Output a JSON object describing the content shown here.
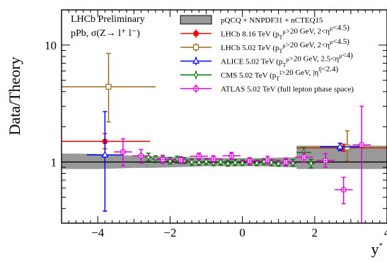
{
  "chart_data": {
    "type": "scatter",
    "title": "",
    "annotations": [
      "LHCb Preliminary",
      "pPb, σ(Z→ l⁺ l⁻)"
    ],
    "xlabel": "y*",
    "ylabel": "Data/Theory",
    "xlim": [
      -5,
      4
    ],
    "ylim": [
      0.3,
      20
    ],
    "ylog": true,
    "grid": false,
    "legend_position": "top-right",
    "x_ticks": [
      -4,
      -2,
      0,
      2,
      4
    ],
    "x_tick_labels": [
      "−4",
      "−2",
      "0",
      "2",
      "4"
    ],
    "y_ticks": [
      1,
      10
    ],
    "y_tick_labels": [
      "1",
      "10"
    ],
    "reference_line": 1,
    "theory_band": {
      "name": "pQCQ + NNPDF31 + nCTEQ15",
      "color": "#999999",
      "x": [
        -5,
        -4.5,
        -4.0,
        -3.5,
        -3.0,
        -2.5,
        -2.0,
        -1.5,
        -1.0,
        -0.5,
        0.0,
        0.5,
        1.0,
        1.5,
        1.5001,
        2.0,
        2.5,
        3.0,
        3.5,
        4.0
      ],
      "low": [
        0.87,
        0.87,
        0.87,
        0.88,
        0.89,
        0.89,
        0.9,
        0.91,
        0.92,
        0.92,
        0.92,
        0.92,
        0.91,
        0.9,
        0.87,
        0.87,
        0.87,
        0.87,
        0.87,
        0.87
      ],
      "high": [
        1.18,
        1.18,
        1.17,
        1.15,
        1.13,
        1.12,
        1.11,
        1.1,
        1.09,
        1.08,
        1.08,
        1.08,
        1.09,
        1.1,
        1.38,
        1.38,
        1.38,
        1.38,
        1.38,
        1.38
      ]
    },
    "series": [
      {
        "name": "LHCb  8.16 TeV (p_T^μ>20 GeV, 2<η^μ<4.5)",
        "color": "#ff0000",
        "marker": "filled-circle",
        "points": [
          {
            "x": -3.8,
            "y": 1.5,
            "xerr": 1.25,
            "ylo": 1.3,
            "yhi": 1.75
          },
          {
            "x": 2.8,
            "y": 1.32,
            "xerr": 1.3,
            "ylo": 1.23,
            "yhi": 1.42
          }
        ]
      },
      {
        "name": "LHCb  5.02 TeV (p_T^μ>20 GeV, 2<η^μ<4.5)",
        "color": "#9a6b1c",
        "marker": "open-square",
        "points": [
          {
            "x": -3.7,
            "y": 4.4,
            "xerr": 1.3,
            "ylo": 2.2,
            "yhi": 8.5
          },
          {
            "x": 2.9,
            "y": 1.33,
            "xerr": 1.35,
            "ylo": 1.02,
            "yhi": 1.85
          }
        ]
      },
      {
        "name": "ALICE  5.02 TeV (p_T^μ>20 GeV, 2.5<η^μ<4)",
        "color": "#0000ff",
        "marker": "open-triangle",
        "points": [
          {
            "x": -3.8,
            "y": 1.15,
            "xerr": 0.5,
            "ylo": 0.38,
            "yhi": 2.7
          },
          {
            "x": 2.7,
            "y": 1.35,
            "xerr": 0.55,
            "ylo": 1.25,
            "yhi": 1.45
          }
        ]
      },
      {
        "name": "CMS  5.02 TeV (p_T^l>20 GeV, |η^l|<2.4)",
        "color": "#007700",
        "marker": "open-diamond",
        "points": [
          {
            "x": -2.6,
            "y": 1.1,
            "xerr": 0.1,
            "ylo": 1.02,
            "yhi": 1.19
          },
          {
            "x": -2.4,
            "y": 1.06,
            "xerr": 0.1,
            "ylo": 0.99,
            "yhi": 1.13
          },
          {
            "x": -2.2,
            "y": 1.07,
            "xerr": 0.1,
            "ylo": 1.0,
            "yhi": 1.14
          },
          {
            "x": -2.0,
            "y": 1.02,
            "xerr": 0.1,
            "ylo": 0.96,
            "yhi": 1.09
          },
          {
            "x": -1.8,
            "y": 1.05,
            "xerr": 0.1,
            "ylo": 0.98,
            "yhi": 1.12
          },
          {
            "x": -1.6,
            "y": 1.03,
            "xerr": 0.1,
            "ylo": 0.97,
            "yhi": 1.09
          },
          {
            "x": -1.4,
            "y": 1.0,
            "xerr": 0.1,
            "ylo": 0.94,
            "yhi": 1.06
          },
          {
            "x": -1.2,
            "y": 0.99,
            "xerr": 0.1,
            "ylo": 0.94,
            "yhi": 1.05
          },
          {
            "x": -1.0,
            "y": 1.01,
            "xerr": 0.1,
            "ylo": 0.95,
            "yhi": 1.07
          },
          {
            "x": -0.8,
            "y": 0.98,
            "xerr": 0.1,
            "ylo": 0.93,
            "yhi": 1.04
          },
          {
            "x": -0.6,
            "y": 1.0,
            "xerr": 0.1,
            "ylo": 0.94,
            "yhi": 1.06
          },
          {
            "x": -0.4,
            "y": 0.97,
            "xerr": 0.1,
            "ylo": 0.92,
            "yhi": 1.03
          },
          {
            "x": -0.2,
            "y": 0.99,
            "xerr": 0.1,
            "ylo": 0.93,
            "yhi": 1.05
          },
          {
            "x": 0.0,
            "y": 0.98,
            "xerr": 0.1,
            "ylo": 0.93,
            "yhi": 1.04
          },
          {
            "x": 0.2,
            "y": 1.0,
            "xerr": 0.1,
            "ylo": 0.94,
            "yhi": 1.06
          },
          {
            "x": 0.4,
            "y": 0.98,
            "xerr": 0.1,
            "ylo": 0.93,
            "yhi": 1.04
          },
          {
            "x": 0.6,
            "y": 1.01,
            "xerr": 0.1,
            "ylo": 0.95,
            "yhi": 1.07
          },
          {
            "x": 0.8,
            "y": 0.99,
            "xerr": 0.1,
            "ylo": 0.93,
            "yhi": 1.05
          },
          {
            "x": 1.0,
            "y": 0.97,
            "xerr": 0.1,
            "ylo": 0.92,
            "yhi": 1.03
          },
          {
            "x": 1.2,
            "y": 0.99,
            "xerr": 0.1,
            "ylo": 0.93,
            "yhi": 1.05
          },
          {
            "x": 1.4,
            "y": 0.98,
            "xerr": 0.1,
            "ylo": 0.92,
            "yhi": 1.05
          },
          {
            "x": 1.7,
            "y": 1.21,
            "xerr": 0.2,
            "ylo": 1.1,
            "yhi": 1.33
          },
          {
            "x": 1.9,
            "y": 0.97,
            "xerr": 0.1,
            "ylo": 0.89,
            "yhi": 1.05
          }
        ]
      },
      {
        "name": "ATLAS 5.02 TeV (full lepton phase space)",
        "color": "#dd00dd",
        "marker": "open-circle-cross",
        "points": [
          {
            "x": -3.3,
            "y": 1.22,
            "xerr": 0.25,
            "ylo": 0.93,
            "yhi": 1.58
          },
          {
            "x": -2.8,
            "y": 1.13,
            "xerr": 0.25,
            "ylo": 0.98,
            "yhi": 1.28
          },
          {
            "x": -2.2,
            "y": 1.05,
            "xerr": 0.25,
            "ylo": 0.97,
            "yhi": 1.13
          },
          {
            "x": -1.7,
            "y": 1.04,
            "xerr": 0.25,
            "ylo": 0.97,
            "yhi": 1.11
          },
          {
            "x": -1.2,
            "y": 1.12,
            "xerr": 0.25,
            "ylo": 1.05,
            "yhi": 1.19
          },
          {
            "x": -0.8,
            "y": 1.06,
            "xerr": 0.25,
            "ylo": 0.99,
            "yhi": 1.13
          },
          {
            "x": -0.3,
            "y": 1.13,
            "xerr": 0.25,
            "ylo": 1.05,
            "yhi": 1.21
          },
          {
            "x": 0.2,
            "y": 1.02,
            "xerr": 0.25,
            "ylo": 0.95,
            "yhi": 1.09
          },
          {
            "x": 0.7,
            "y": 1.04,
            "xerr": 0.25,
            "ylo": 0.96,
            "yhi": 1.12
          },
          {
            "x": 1.2,
            "y": 1.0,
            "xerr": 0.25,
            "ylo": 0.92,
            "yhi": 1.08
          },
          {
            "x": 1.7,
            "y": 1.1,
            "xerr": 0.25,
            "ylo": 0.99,
            "yhi": 1.21
          },
          {
            "x": 2.3,
            "y": 1.03,
            "xerr": 0.25,
            "ylo": 0.9,
            "yhi": 1.18
          },
          {
            "x": 2.8,
            "y": 0.58,
            "xerr": 0.25,
            "ylo": 0.44,
            "yhi": 0.74
          },
          {
            "x": 3.3,
            "y": 1.4,
            "xerr": 0.25,
            "ylo": 0.28,
            "yhi": 3.0
          }
        ]
      }
    ]
  }
}
